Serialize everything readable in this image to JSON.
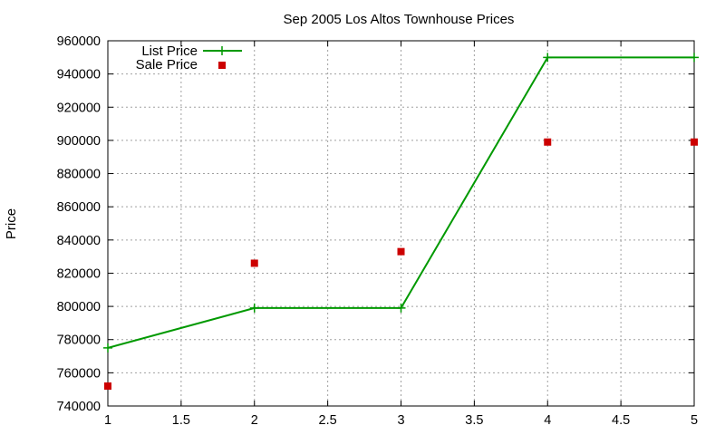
{
  "chart_data": {
    "type": "line",
    "title": "Sep 2005 Los Altos Townhouse Prices",
    "xlabel": "",
    "ylabel": "Price",
    "xlim": [
      1,
      5
    ],
    "ylim": [
      740000,
      960000
    ],
    "x_ticks": [
      "1",
      "1.5",
      "2",
      "2.5",
      "3",
      "3.5",
      "4",
      "4.5",
      "5"
    ],
    "y_ticks": [
      "740000",
      "760000",
      "780000",
      "800000",
      "820000",
      "840000",
      "860000",
      "880000",
      "900000",
      "920000",
      "940000",
      "960000"
    ],
    "grid": true,
    "legend_position": "top-left",
    "series": [
      {
        "name": "List Price",
        "style": "line+cross",
        "color": "#009900",
        "x": [
          1,
          2,
          3,
          4,
          5
        ],
        "y": [
          775000,
          799000,
          799000,
          950000,
          950000
        ]
      },
      {
        "name": "Sale Price",
        "style": "square",
        "color": "#cc0000",
        "x": [
          1,
          2,
          3,
          4,
          5
        ],
        "y": [
          752000,
          826000,
          833000,
          899000,
          899000
        ]
      }
    ]
  }
}
